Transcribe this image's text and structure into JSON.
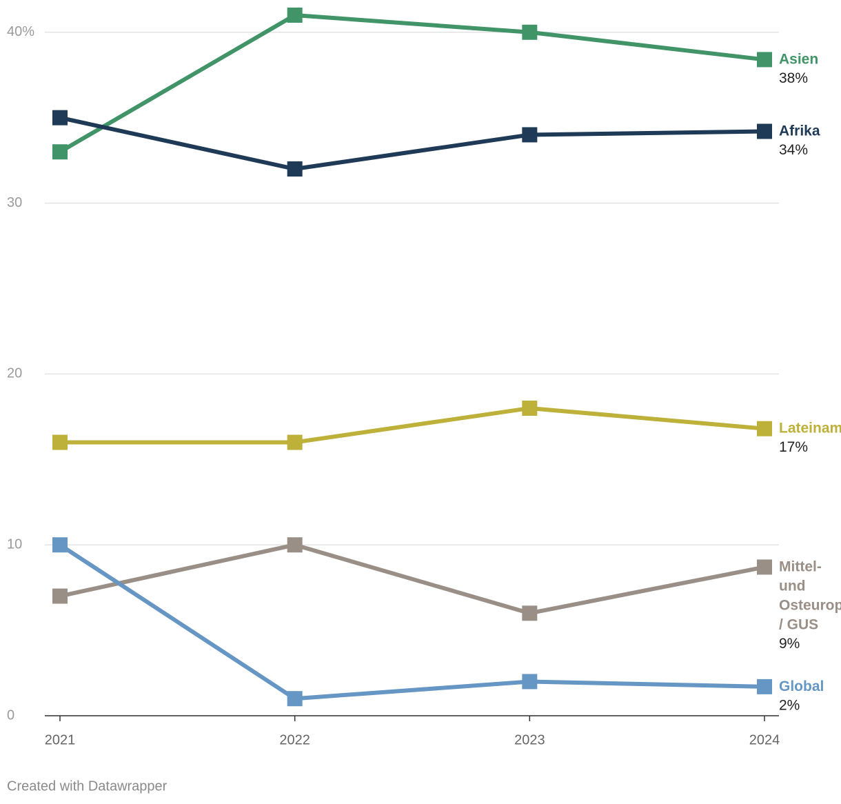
{
  "chart_data": {
    "type": "line",
    "categories": [
      "2021",
      "2022",
      "2023",
      "2024"
    ],
    "series": [
      {
        "name": "Asien",
        "color": "#409467",
        "values": [
          33,
          41,
          40,
          38.4
        ],
        "value_labels": [
          null,
          null,
          null,
          "38%"
        ]
      },
      {
        "name": "Afrika",
        "color": "#1f3a56",
        "values": [
          35,
          32,
          34,
          34.2
        ],
        "value_labels": [
          null,
          null,
          null,
          "34%"
        ]
      },
      {
        "name": "Lateinamerika",
        "color": "#bdb13a",
        "values": [
          16,
          16,
          18,
          16.8
        ],
        "value_labels": [
          null,
          null,
          null,
          "17%"
        ]
      },
      {
        "name": "Mittel- und Osteuropa / GUS",
        "color": "#9a8f86",
        "values": [
          7,
          10,
          6,
          8.7
        ],
        "value_labels": [
          null,
          null,
          null,
          "9%"
        ]
      },
      {
        "name": "Global",
        "color": "#6596c4",
        "values": [
          10,
          1,
          2,
          1.7
        ],
        "value_labels": [
          null,
          null,
          null,
          "2%"
        ]
      }
    ],
    "ylim": [
      0,
      41
    ],
    "yticks": [
      0,
      10,
      20,
      30,
      {
        "value": 40,
        "label": "40%"
      }
    ],
    "grid": true,
    "footer": "Created with Datawrapper"
  }
}
